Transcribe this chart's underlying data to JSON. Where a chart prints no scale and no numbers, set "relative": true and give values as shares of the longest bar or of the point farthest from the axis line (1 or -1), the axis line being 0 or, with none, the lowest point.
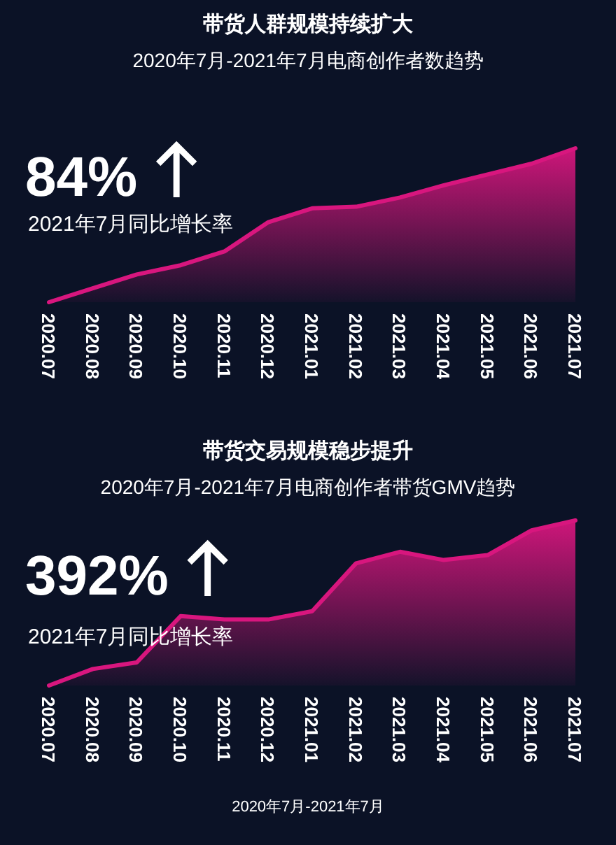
{
  "chart_data": [
    {
      "type": "area",
      "title": "带货人群规模持续扩大",
      "subtitle": "2020年7月-2021年7月电商创作者数趋势",
      "relative": true,
      "color": "#d8167e",
      "categories": [
        "2020.07",
        "2020.08",
        "2020.09",
        "2020.10",
        "2020.11",
        "2020.12",
        "2021.01",
        "2021.02",
        "2021.03",
        "2021.04",
        "2021.05",
        "2021.06",
        "2021.07"
      ],
      "values": [
        0,
        0.09,
        0.18,
        0.24,
        0.33,
        0.52,
        0.61,
        0.62,
        0.68,
        0.76,
        0.83,
        0.9,
        1
      ],
      "annotations": [
        "84%",
        "2021年7月同比增长率"
      ]
    },
    {
      "type": "area",
      "title": "带货交易规模稳步提升",
      "subtitle": "2020年7月-2021年7月电商创作者带货GMV趋势",
      "relative": true,
      "color": "#d8167e",
      "categories": [
        "2020.07",
        "2020.08",
        "2020.09",
        "2020.10",
        "2020.11",
        "2020.12",
        "2021.01",
        "2021.02",
        "2021.03",
        "2021.04",
        "2021.05",
        "2021.06",
        "2021.07"
      ],
      "values": [
        0,
        0.1,
        0.14,
        0.42,
        0.4,
        0.4,
        0.45,
        0.74,
        0.81,
        0.76,
        0.79,
        0.94,
        1
      ],
      "annotations": [
        "392%",
        "2021年7月同比增长率",
        "2020年7月-2021年7月"
      ]
    }
  ]
}
